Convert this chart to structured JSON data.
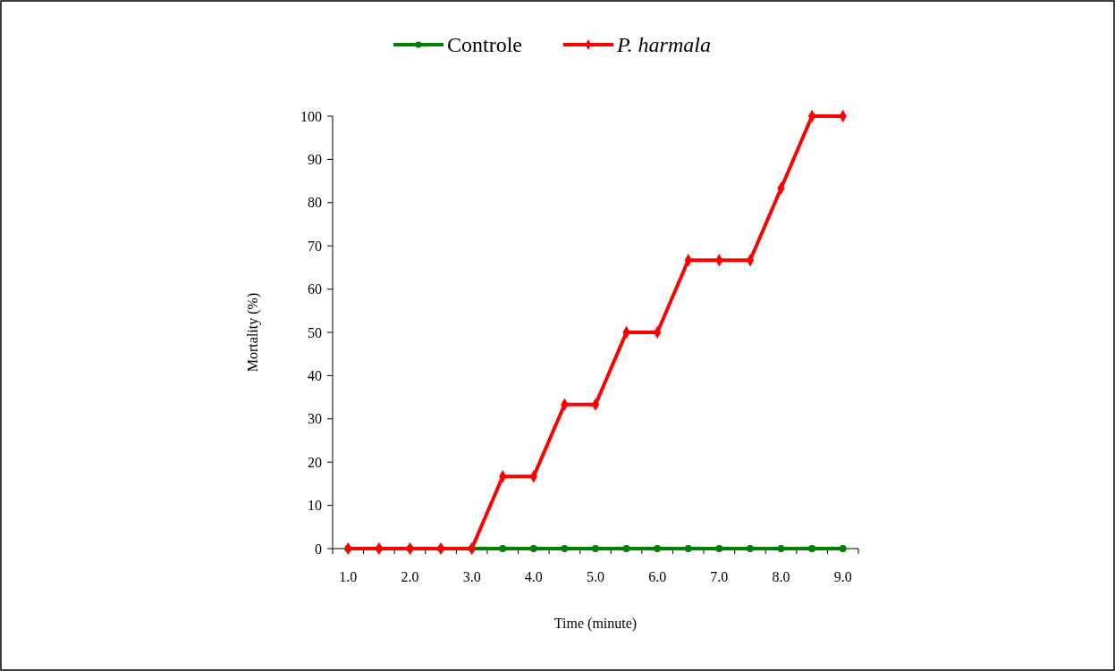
{
  "chart_data": {
    "type": "line",
    "xlabel": "Time (minute)",
    "ylabel": "Mortality (%)",
    "categories": [
      "1.0",
      null,
      "2.0",
      null,
      "3.0",
      null,
      "4.0",
      null,
      "5.0",
      null,
      "6.0",
      null,
      "7.0",
      null,
      "8.0",
      null,
      "9.0"
    ],
    "series": [
      {
        "name": "Controle",
        "color": "#008000",
        "marker": "circle",
        "values": [
          0,
          0,
          0,
          0,
          0,
          0,
          0,
          0,
          0,
          0,
          0,
          0,
          0,
          0,
          0,
          0,
          0
        ]
      },
      {
        "name": "P. harmala",
        "color": "#ff0000",
        "marker": "diamond",
        "values": [
          0,
          0,
          0,
          0,
          0,
          16.67,
          16.67,
          33.33,
          33.33,
          50,
          50,
          66.67,
          66.67,
          66.67,
          83.33,
          100,
          100
        ]
      }
    ],
    "ylim": [
      0,
      100
    ],
    "yticks": [
      0,
      10,
      20,
      30,
      40,
      50,
      60,
      70,
      80,
      90,
      100
    ],
    "grid": false,
    "legend": "top",
    "line_style": "solid"
  }
}
